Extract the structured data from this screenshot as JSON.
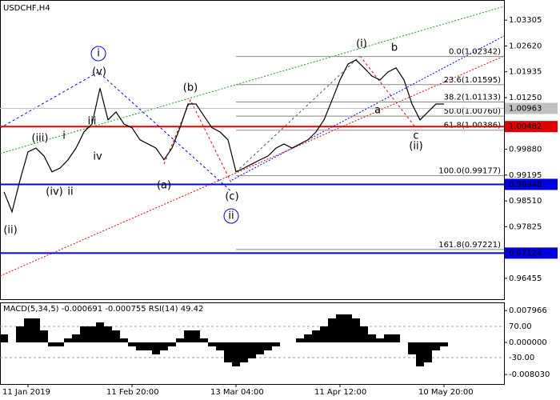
{
  "chart_data": {
    "type": "line",
    "title": "USDCHF,H4",
    "categories": [
      null,
      null,
      null,
      "11 Jan 2019",
      null,
      null,
      null,
      null,
      null,
      null,
      null,
      null,
      null,
      null,
      null,
      null,
      "11 Feb 20:00",
      null,
      null,
      null,
      null,
      null,
      null,
      null,
      null,
      null,
      null,
      null,
      null,
      "13 Mar 04:00",
      null,
      null,
      null,
      null,
      null,
      null,
      null,
      null,
      null,
      null,
      null,
      null,
      "11 Apr 12:00",
      null,
      null,
      null,
      null,
      null,
      null,
      null,
      null,
      null,
      null,
      null,
      null,
      "10 May 20:00"
    ],
    "series": [
      {
        "color": "#000000",
        "values": [
          0.9875,
          0.9822,
          0.9906,
          0.9981,
          0.9991,
          0.997,
          0.9928,
          0.9938,
          0.996,
          0.9991,
          1.0034,
          1.0055,
          1.015,
          1.0066,
          1.0087,
          1.0055,
          1.0045,
          1.0013,
          1.0002,
          0.9991,
          0.996,
          0.9991,
          1.0045,
          1.0108,
          1.0108,
          1.0076,
          1.0045,
          1.0034,
          1.0013,
          0.9928,
          0.9938,
          0.9949,
          0.996,
          0.997,
          0.9991,
          1.0002,
          0.9991,
          1.0002,
          1.0013,
          1.0034,
          1.0066,
          1.0118,
          1.0172,
          1.0214,
          1.0225,
          1.0204,
          1.0182,
          1.0172,
          1.0193,
          1.0204,
          1.0172,
          1.0108,
          1.0066,
          1.0087,
          1.0108,
          1.0108
        ]
      }
    ],
    "ylim": [
      0.9588,
      1.0384
    ],
    "yticks": [
      {
        "value": 1.03305,
        "label": "1.03305"
      },
      {
        "value": 1.0262,
        "label": "1.02620"
      },
      1.01935,
      {
        "value": 1.0125,
        "label": "1.01250"
      },
      {
        "value": 0.9988,
        "label": "0.99880"
      },
      0.99195,
      {
        "value": 0.9851,
        "label": "0.98510"
      },
      0.97825,
      0.96455
    ],
    "price_levels": [
      {
        "value": 1.00963,
        "label": "1.00963",
        "color": "#c0c0c0"
      },
      {
        "value": 1.00482,
        "label": "1.00482",
        "color": "#e00000"
      },
      {
        "value": 0.98948,
        "label": "0.98948",
        "color": "#0000e0"
      },
      {
        "value": 0.97124,
        "label": "0.97124",
        "color": "#0000e0"
      }
    ],
    "fibonacci": [
      {
        "value": 1.02342,
        "label": "0.0(1.02342)"
      },
      {
        "value": 1.01595,
        "label": "23.6(1.01595)"
      },
      {
        "value": 1.01133,
        "label": "38.2(1.01133)"
      },
      {
        "value": 1.0076,
        "label": "50.0(1.00760)"
      },
      {
        "value": 1.00386,
        "label": "61.8(1.00386)"
      },
      {
        "value": 0.99177,
        "label": "100.0(0.99177)"
      },
      {
        "value": 0.97221,
        "label": "161.8(0.97221)"
      }
    ],
    "annotations": [
      "(ii)",
      "(iii)",
      "(iv)",
      "ii",
      "i",
      "iii",
      "iv",
      "(v)",
      "i",
      "(a)",
      "(b)",
      "(c)",
      "ii",
      "(i)",
      "b",
      "a",
      "c",
      "(ii)"
    ],
    "indicator": {
      "title": "MACD(5,34,5) -0.000691 -0.000755 RSI(14) 49.42",
      "color": "#000000",
      "values": [
        0.002,
        0,
        0.004,
        0.006,
        0.006,
        0.003,
        -0.001,
        -0.001,
        0.001,
        0.002,
        0.004,
        0.004,
        0.005,
        0.004,
        0.003,
        0.001,
        -0.001,
        -0.002,
        -0.002,
        -0.003,
        -0.002,
        -0.001,
        0.001,
        0.003,
        0.003,
        0.001,
        -0.001,
        -0.002,
        -0.005,
        -0.006,
        -0.005,
        -0.004,
        -0.003,
        -0.002,
        -0.001,
        0,
        0,
        0.001,
        0.002,
        0.003,
        0.004,
        0.006,
        0.007,
        0.007,
        0.006,
        0.004,
        0.002,
        0.001,
        0.002,
        0.002,
        0,
        -0.003,
        -0.006,
        -0.005,
        -0.002,
        -0.001
      ],
      "ylim": [
        -0.0104,
        0.01
      ],
      "yticks": [
        {
          "value": 0.007966,
          "label": "0.007966"
        },
        {
          "value": 0,
          "label": "0.000000"
        },
        {
          "value": -0.00803,
          "label": "-0.008030"
        }
      ],
      "y2lim": [
        -114.6,
        146.9
      ],
      "y2ticks": [
        {
          "value": 70,
          "label": "70.00"
        },
        {
          "value": -30,
          "label": "-30.00"
        }
      ]
    }
  }
}
